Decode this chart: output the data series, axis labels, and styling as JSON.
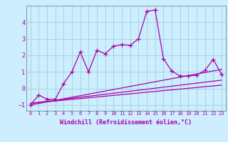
{
  "xlabel": "Windchill (Refroidissement éolien,°C)",
  "bg_color": "#cceeff",
  "grid_color": "#99cccc",
  "line_color": "#aa00aa",
  "spine_color": "#7799aa",
  "xlim": [
    -0.5,
    23.5
  ],
  "ylim": [
    -1.35,
    5.0
  ],
  "xticks": [
    0,
    1,
    2,
    3,
    4,
    5,
    6,
    7,
    8,
    9,
    10,
    11,
    12,
    13,
    14,
    15,
    16,
    17,
    18,
    19,
    20,
    21,
    22,
    23
  ],
  "yticks": [
    -1,
    0,
    1,
    2,
    3,
    4
  ],
  "main_x": [
    0,
    1,
    2,
    3,
    4,
    5,
    6,
    7,
    8,
    9,
    10,
    11,
    12,
    13,
    14,
    15,
    16,
    17,
    18,
    19,
    20,
    21,
    22,
    23
  ],
  "main_y": [
    -1.0,
    -0.4,
    -0.65,
    -0.65,
    0.3,
    1.0,
    2.2,
    1.0,
    2.3,
    2.1,
    2.55,
    2.65,
    2.6,
    3.0,
    4.65,
    4.75,
    1.8,
    1.05,
    0.75,
    0.75,
    0.8,
    1.1,
    1.75,
    0.85
  ],
  "line1_x": [
    0,
    23
  ],
  "line1_y": [
    -1.0,
    1.15
  ],
  "line2_x": [
    0,
    23
  ],
  "line2_y": [
    -0.9,
    0.5
  ],
  "line3_x": [
    0,
    23
  ],
  "line3_y": [
    -0.9,
    0.2
  ]
}
